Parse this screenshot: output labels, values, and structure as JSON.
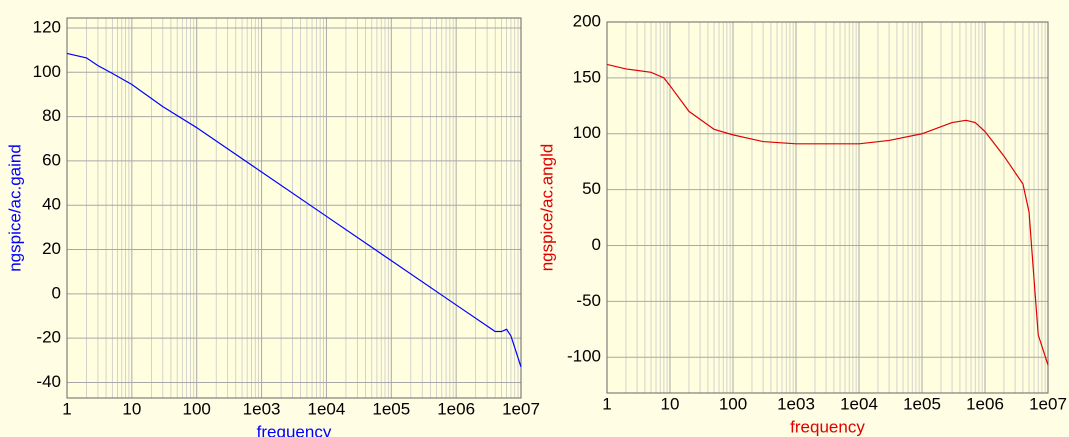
{
  "chart_data": [
    {
      "type": "line",
      "xlabel": "frequency",
      "ylabel": "ngspice/ac.gaind",
      "color": "#0000ff",
      "log_x": true,
      "grid": true,
      "x": [
        1,
        2,
        3,
        5,
        10,
        30,
        100,
        1000,
        10000,
        100000,
        1000000,
        3000000,
        4000000,
        5000000,
        6000000,
        7000000,
        10000000
      ],
      "values": [
        108.5,
        106.5,
        103,
        99.5,
        94.5,
        84.5,
        75,
        55,
        35,
        15,
        -5,
        -14.5,
        -17,
        -17,
        -16,
        -19,
        -33
      ],
      "xlim": [
        1,
        10000000
      ],
      "ylim": [
        -47,
        124.5
      ],
      "xticks": [
        1,
        10,
        100,
        {
          "value": 1000,
          "label": "1e03"
        },
        {
          "value": 10000,
          "label": "1e04"
        },
        {
          "value": 100000,
          "label": "1e05"
        },
        {
          "value": 1000000,
          "label": "1e06"
        },
        {
          "value": 10000000,
          "label": "1e07"
        }
      ],
      "yticks": [
        -40,
        -20,
        0,
        20,
        40,
        60,
        80,
        100,
        120
      ]
    },
    {
      "type": "line",
      "xlabel": "frequency",
      "ylabel": "ngspice/ac.angld",
      "color": "#e00000",
      "log_x": true,
      "grid": true,
      "x": [
        1,
        2,
        5,
        8,
        10,
        20,
        50,
        100,
        300,
        1000,
        10000,
        30000,
        100000,
        300000,
        500000,
        700000,
        1000000,
        2000000,
        4000000,
        5000000,
        6000000,
        7000000,
        10000000
      ],
      "values": [
        162,
        158,
        155,
        150,
        143,
        120,
        104,
        99,
        93,
        91,
        91,
        94,
        100,
        110,
        112,
        110,
        102,
        80,
        55,
        30,
        -30,
        -80,
        -107
      ],
      "xlim": [
        1,
        10000000
      ],
      "ylim": [
        -132,
        200
      ],
      "xticks": [
        1,
        10,
        100,
        {
          "value": 1000,
          "label": "1e03"
        },
        {
          "value": 10000,
          "label": "1e04"
        },
        {
          "value": 100000,
          "label": "1e05"
        },
        {
          "value": 1000000,
          "label": "1e06"
        },
        {
          "value": 10000000,
          "label": "1e07"
        }
      ],
      "yticks": [
        -100,
        -50,
        0,
        50,
        100,
        150,
        200
      ]
    }
  ]
}
